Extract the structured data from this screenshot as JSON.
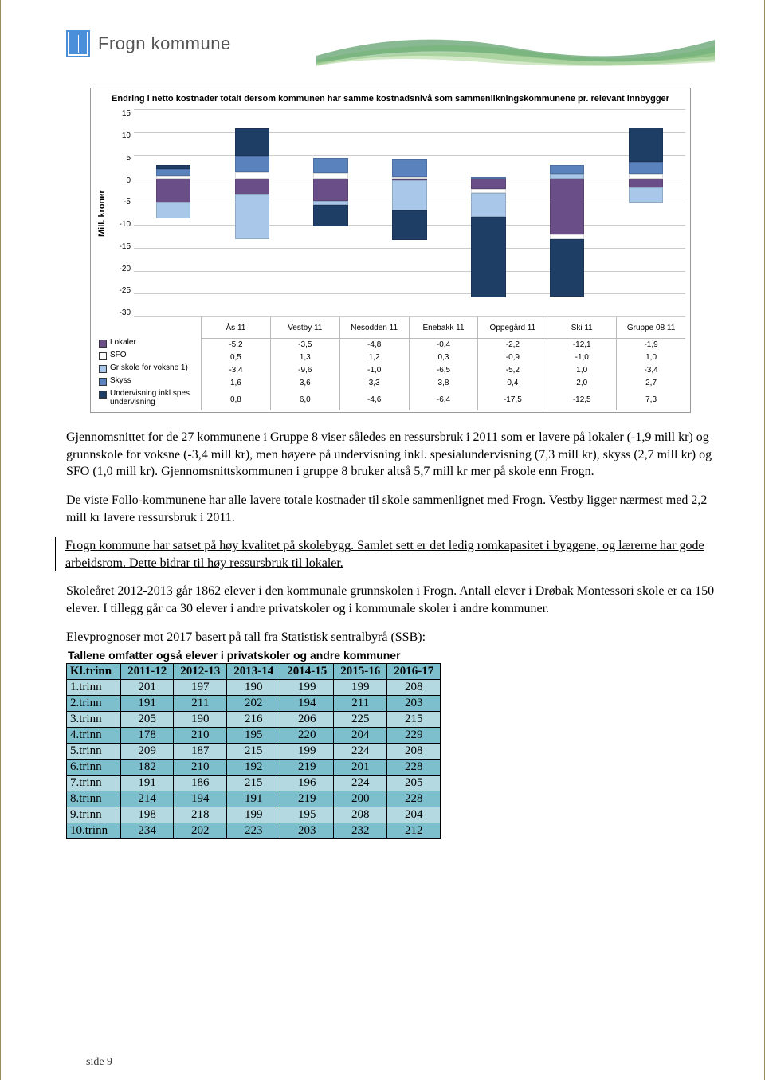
{
  "header": {
    "kommune": "Frogn kommune"
  },
  "chart": {
    "title": "Endring i netto kostnader totalt dersom kommunen har samme kostnadsnivå som sammenlikningskommunene pr. relevant innbygger",
    "ylabel": "Mill. kroner",
    "ymin": -30,
    "ymax": 15,
    "ystep": 5,
    "gridcolor": "#cccccc",
    "categories": [
      "Ås 11",
      "Vestby 11",
      "Nesodden 11",
      "Enebakk 11",
      "Oppegård 11",
      "Ski 11",
      "Gruppe 08 11"
    ],
    "series": [
      {
        "name": "Lokaler",
        "color": "#6a4e88",
        "values": [
          -5.2,
          -3.5,
          -4.8,
          -0.4,
          -2.2,
          -12.1,
          -1.9
        ]
      },
      {
        "name": "SFO",
        "color": "#ffffff",
        "values": [
          0.5,
          1.3,
          1.2,
          0.3,
          -0.9,
          -1.0,
          1.0
        ]
      },
      {
        "name": "Gr skole for voksne 1)",
        "color": "#a9c7e8",
        "values": [
          -3.4,
          -9.6,
          -1.0,
          -6.5,
          -5.2,
          1.0,
          -3.4
        ]
      },
      {
        "name": "Skyss",
        "color": "#5a82bd",
        "values": [
          1.6,
          3.6,
          3.3,
          3.8,
          0.4,
          2.0,
          2.7
        ]
      },
      {
        "name": "Undervisning inkl spes undervisning",
        "color": "#1e3e66",
        "values": [
          0.8,
          6.0,
          -4.6,
          -6.4,
          -17.5,
          -12.5,
          7.3
        ]
      }
    ]
  },
  "paragraphs": {
    "p1": "Gjennomsnittet for de 27 kommunene i Gruppe 8 viser således en ressursbruk i 2011 som er lavere på lokaler (-1,9 mill kr) og grunnskole for voksne (-3,4 mill kr), men høyere på undervisning inkl. spesialundervisning (7,3 mill kr), skyss (2,7 mill kr) og SFO (1,0 mill kr). Gjennomsnittskommunen i gruppe 8 bruker altså 5,7 mill kr mer på skole enn Frogn.",
    "p2": "De viste Follo-kommunene har alle lavere totale kostnader til skole sammenlignet med Frogn. Vestby ligger nærmest med 2,2 mill kr lavere ressursbruk i 2011.",
    "p3": "Frogn kommune har satset på høy kvalitet på skolebygg. Samlet sett er det ledig romkapasitet i byggene, og lærerne har gode arbeidsrom. Dette bidrar til høy ressursbruk til lokaler.",
    "p4": "Skoleåret 2012-2013 går 1862 elever i den kommunale grunnskolen i Frogn. Antall elever i Drøbak Montessori skole er ca 150 elever. I tillegg går ca 30 elever i andre privatskoler og i kommunale skoler i andre kommuner.",
    "p5": "Elevprognoser mot 2017 basert på tall fra Statistisk sentralbyrå (SSB):"
  },
  "elevTable": {
    "caption": "Tallene omfatter også elever i privatskoler og andre kommuner",
    "head": [
      "Kl.trinn",
      "2011-12",
      "2012-13",
      "2013-14",
      "2014-15",
      "2015-16",
      "2016-17"
    ],
    "rows": [
      {
        "label": "1.trinn",
        "vals": [
          201,
          197,
          190,
          199,
          199,
          208
        ]
      },
      {
        "label": "2.trinn",
        "vals": [
          191,
          211,
          202,
          194,
          211,
          203
        ]
      },
      {
        "label": "3.trinn",
        "vals": [
          205,
          190,
          216,
          206,
          225,
          215
        ]
      },
      {
        "label": "4.trinn",
        "vals": [
          178,
          210,
          195,
          220,
          204,
          229
        ]
      },
      {
        "label": "5.trinn",
        "vals": [
          209,
          187,
          215,
          199,
          224,
          208
        ]
      },
      {
        "label": "6.trinn",
        "vals": [
          182,
          210,
          192,
          219,
          201,
          228
        ]
      },
      {
        "label": "7.trinn",
        "vals": [
          191,
          186,
          215,
          196,
          224,
          205
        ]
      },
      {
        "label": "8.trinn",
        "vals": [
          214,
          194,
          191,
          219,
          200,
          228
        ]
      },
      {
        "label": "9.trinn",
        "vals": [
          198,
          218,
          199,
          195,
          208,
          204
        ]
      },
      {
        "label": "10.trinn",
        "vals": [
          234,
          202,
          223,
          203,
          232,
          212
        ]
      }
    ]
  },
  "footer": {
    "page": "side 9"
  }
}
